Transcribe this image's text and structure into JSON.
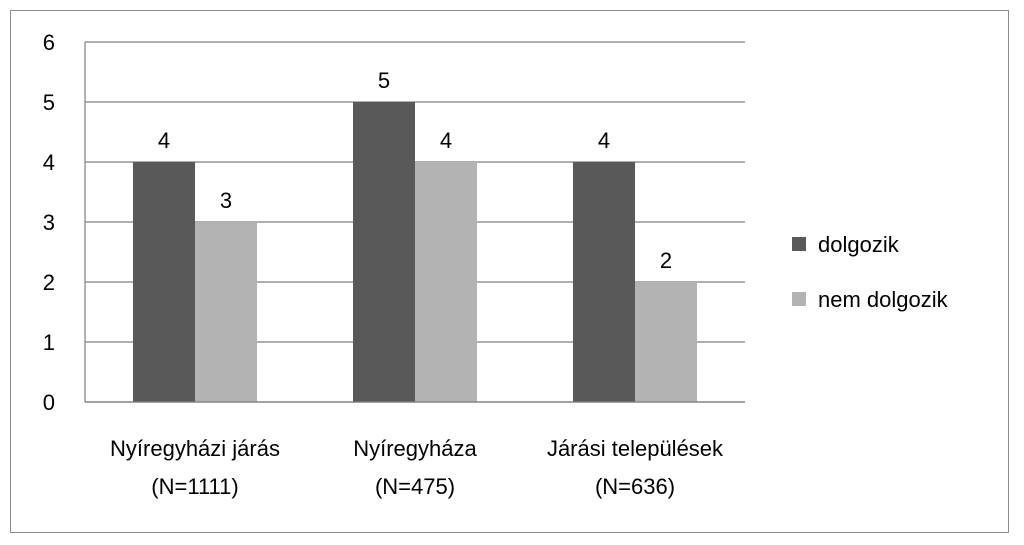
{
  "chart_data": {
    "type": "bar",
    "categories": [
      [
        "Nyíregyházi járás",
        "(N=1111)"
      ],
      [
        "Nyíregyháza",
        "(N=475)"
      ],
      [
        "Járási települések",
        "(N=636)"
      ]
    ],
    "series": [
      {
        "name": "dolgozik",
        "color": "#595959",
        "values": [
          4,
          5,
          4
        ]
      },
      {
        "name": "nem dolgozik",
        "color": "#b3b3b3",
        "values": [
          3,
          4,
          2
        ]
      }
    ],
    "ylim": [
      0,
      6
    ],
    "yticks": [
      "0",
      "1",
      "2",
      "3",
      "4",
      "5",
      "6"
    ],
    "grid": true,
    "legend": "right",
    "title": "",
    "xlabel": "",
    "ylabel": ""
  }
}
